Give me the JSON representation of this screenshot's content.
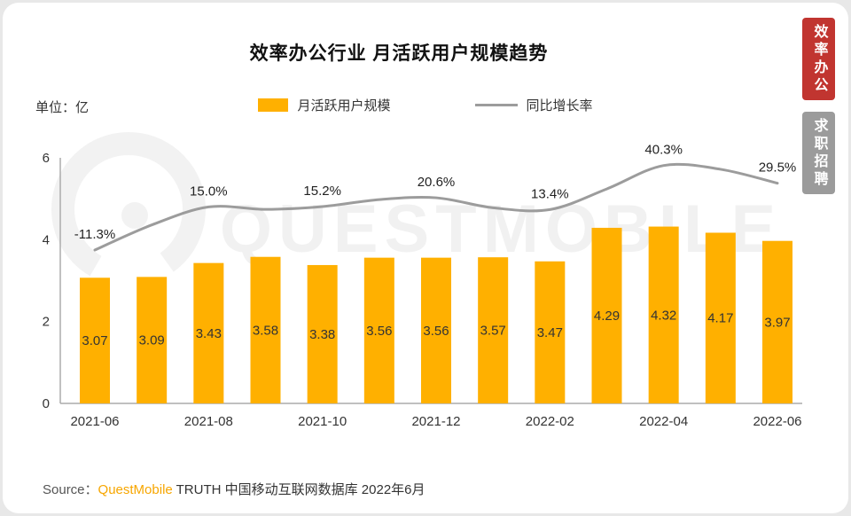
{
  "page": {
    "title": "效率办公行业 月活跃用户规模趋势",
    "unit_label": "单位：亿",
    "watermark": "QUESTMOBILE",
    "side_tabs": [
      {
        "label": "效率办公",
        "color": "#C13530",
        "active": true
      },
      {
        "label": "求职招聘",
        "color": "#9B9B9B",
        "active": false
      }
    ],
    "source": {
      "prefix": "Source：",
      "brand": "QuestMobile",
      "rest": " TRUTH 中国移动互联网数据库 2022年6月"
    }
  },
  "chart_data": {
    "type": "bar+line",
    "title": "效率办公行业 月活跃用户规模趋势",
    "unit": "亿",
    "grid": false,
    "legend_position": "top-center",
    "categories": [
      "2021-06",
      "2021-07",
      "2021-08",
      "2021-09",
      "2021-10",
      "2021-11",
      "2021-12",
      "2022-01",
      "2022-02",
      "2022-03",
      "2022-04",
      "2022-05",
      "2022-06"
    ],
    "x_tick_labels": [
      "2021-06",
      "2021-08",
      "2021-10",
      "2021-12",
      "2022-02",
      "2022-04",
      "2022-06"
    ],
    "x_label_every": 2,
    "ylim": [
      0,
      6
    ],
    "y_ticks": [
      0,
      2,
      4,
      6
    ],
    "series": [
      {
        "name": "月活跃用户规模",
        "type": "bar",
        "color": "#FFB000",
        "values": [
          3.07,
          3.09,
          3.43,
          3.58,
          3.38,
          3.56,
          3.56,
          3.57,
          3.47,
          4.29,
          4.32,
          4.17,
          3.97
        ]
      },
      {
        "name": "同比增长率",
        "type": "line",
        "color": "#9C9C9C",
        "labeled_values": {
          "2021-06": -11.3,
          "2021-08": 15.0,
          "2021-10": 15.2,
          "2021-12": 20.6,
          "2022-02": 13.4,
          "2022-04": 40.3,
          "2022-06": 29.5
        },
        "values_est": [
          -11.3,
          4,
          15.0,
          13.5,
          15.2,
          19.5,
          20.6,
          14.5,
          13.4,
          26,
          40.3,
          38,
          29.5
        ],
        "labels": [
          "-11.3%",
          null,
          "15.0%",
          null,
          "15.2%",
          null,
          "20.6%",
          null,
          "13.4%",
          null,
          "40.3%",
          null,
          "29.5%"
        ]
      }
    ]
  }
}
